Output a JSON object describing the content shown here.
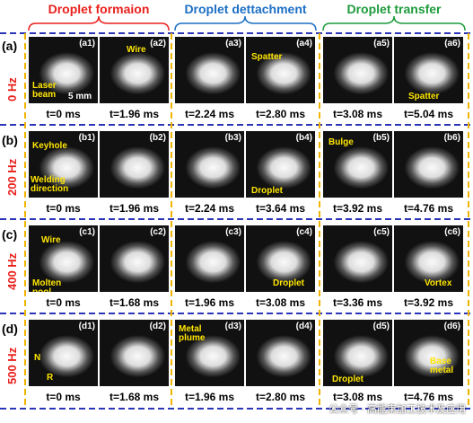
{
  "header": {
    "groups": [
      {
        "title": "Droplet formaion",
        "color": "#e8201c"
      },
      {
        "title": "Droplet  dettachment",
        "color": "#1c6fc4"
      },
      {
        "title": "Droplet  transfer",
        "color": "#1d9b3c"
      }
    ]
  },
  "rows": [
    {
      "label": "(a)",
      "frequency": "0 Hz",
      "panels": [
        {
          "id": "(a1)",
          "time": "t=0 ms",
          "annotations": [
            "Laser beam",
            "5 mm"
          ]
        },
        {
          "id": "(a2)",
          "time": "t=1.96 ms",
          "annotations": [
            "Wire"
          ]
        },
        {
          "id": "(a3)",
          "time": "t=2.24 ms",
          "annotations": []
        },
        {
          "id": "(a4)",
          "time": "t=2.80 ms",
          "annotations": [
            "Spatter"
          ]
        },
        {
          "id": "(a5)",
          "time": "t=3.08 ms",
          "annotations": []
        },
        {
          "id": "(a6)",
          "time": "t=5.04 ms",
          "annotations": [
            "Spatter"
          ]
        }
      ]
    },
    {
      "label": "(b)",
      "frequency": "200 Hz",
      "panels": [
        {
          "id": "(b1)",
          "time": "t=0 ms",
          "annotations": [
            "Keyhole",
            "Welding direction"
          ]
        },
        {
          "id": "(b2)",
          "time": "t=1.96 ms",
          "annotations": []
        },
        {
          "id": "(b3)",
          "time": "t=2.24 ms",
          "annotations": []
        },
        {
          "id": "(b4)",
          "time": "t=3.64 ms",
          "annotations": [
            "Droplet"
          ]
        },
        {
          "id": "(b5)",
          "time": "t=3.92 ms",
          "annotations": [
            "Bulge"
          ]
        },
        {
          "id": "(b6)",
          "time": "t=4.76 ms",
          "annotations": []
        }
      ]
    },
    {
      "label": "(c)",
      "frequency": "400 Hz",
      "panels": [
        {
          "id": "(c1)",
          "time": "t=0 ms",
          "annotations": [
            "Wire",
            "Molten pool"
          ]
        },
        {
          "id": "(c2)",
          "time": "t=1.68 ms",
          "annotations": []
        },
        {
          "id": "(c3)",
          "time": "t=1.96 ms",
          "annotations": []
        },
        {
          "id": "(c4)",
          "time": "t=3.08 ms",
          "annotations": [
            "Droplet"
          ]
        },
        {
          "id": "(c5)",
          "time": "t=3.36 ms",
          "annotations": []
        },
        {
          "id": "(c6)",
          "time": "t=3.92 ms",
          "annotations": [
            "Vortex"
          ]
        }
      ]
    },
    {
      "label": "(d)",
      "frequency": "500 Hz",
      "panels": [
        {
          "id": "(d1)",
          "time": "t=0 ms",
          "annotations": [
            "N",
            "R"
          ]
        },
        {
          "id": "(d2)",
          "time": "t=1.68 ms",
          "annotations": []
        },
        {
          "id": "(d3)",
          "time": "t=1.96 ms",
          "annotations": [
            "Metal plume"
          ]
        },
        {
          "id": "(d4)",
          "time": "t=2.80 ms",
          "annotations": []
        },
        {
          "id": "(d5)",
          "time": "t=3.08 ms",
          "annotations": [
            "Droplet"
          ]
        },
        {
          "id": "(d6)",
          "time": "t=4.76 ms",
          "annotations": [
            "Base metal"
          ]
        }
      ]
    }
  ],
  "watermark": "公众号 · 高能束加工技术及应用"
}
